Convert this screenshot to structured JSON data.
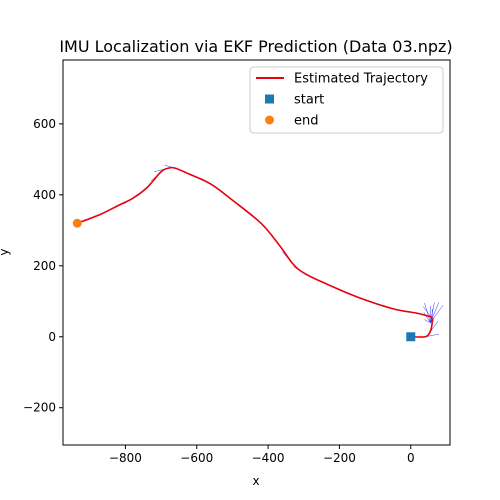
{
  "chart_data": {
    "type": "line",
    "title": "IMU Localization via EKF Prediction (Data 03.npz)",
    "xlabel": "x",
    "ylabel": "y",
    "xlim": [
      -975,
      110
    ],
    "ylim": [
      -305,
      780
    ],
    "xticks": [
      -800,
      -600,
      -400,
      -200,
      0
    ],
    "yticks": [
      -200,
      0,
      200,
      400,
      600
    ],
    "xtick_labels": [
      "−800",
      "−600",
      "−400",
      "−200",
      "0"
    ],
    "ytick_labels": [
      "−200",
      "0",
      "200",
      "400",
      "600"
    ],
    "grid": false,
    "legend_position": "top-right",
    "legend": [
      {
        "name": "Estimated Trajectory",
        "marker": "line",
        "color": "#e8000b"
      },
      {
        "name": "start",
        "marker": "square",
        "color": "#1f77b4"
      },
      {
        "name": "end",
        "marker": "circle",
        "color": "#ff7f0e"
      }
    ],
    "series": [
      {
        "name": "Estimated Trajectory",
        "color": "#e8000b",
        "x": [
          0,
          40,
          52,
          58,
          60,
          58,
          50,
          20,
          -50,
          -150,
          -250,
          -300,
          -330,
          -370,
          -420,
          -500,
          -560,
          -620,
          -660,
          -680,
          -700,
          -740,
          -780,
          -820,
          -870,
          -935
        ],
        "y": [
          0,
          0,
          10,
          25,
          45,
          55,
          58,
          66,
          79,
          112,
          155,
          180,
          205,
          260,
          320,
          385,
          430,
          458,
          475,
          475,
          465,
          420,
          390,
          370,
          345,
          320
        ]
      }
    ],
    "start": {
      "x": 0,
      "y": 0,
      "color": "#1f77b4"
    },
    "end": {
      "x": -935,
      "y": 320,
      "color": "#ff7f0e"
    },
    "orientation_color": "#0000ff"
  }
}
